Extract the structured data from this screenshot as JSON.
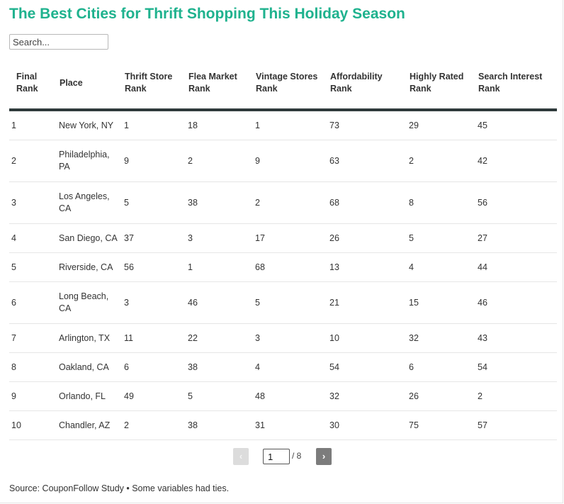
{
  "title": "The Best Cities for Thrift Shopping This Holiday Season",
  "search": {
    "placeholder": "Search..."
  },
  "table": {
    "headers": [
      "Final Rank",
      "Place",
      "Thrift Store Rank",
      "Flea Market Rank",
      "Vintage Stores Rank",
      "Affordability Rank",
      "Highly Rated Rank",
      "Search Interest Rank"
    ],
    "rows": [
      [
        "1",
        "New York, NY",
        "1",
        "18",
        "1",
        "73",
        "29",
        "45"
      ],
      [
        "2",
        "Philadelphia, PA",
        "9",
        "2",
        "9",
        "63",
        "2",
        "42"
      ],
      [
        "3",
        "Los Angeles, CA",
        "5",
        "38",
        "2",
        "68",
        "8",
        "56"
      ],
      [
        "4",
        "San Diego, CA",
        "37",
        "3",
        "17",
        "26",
        "5",
        "27"
      ],
      [
        "5",
        "Riverside, CA",
        "56",
        "1",
        "68",
        "13",
        "4",
        "44"
      ],
      [
        "6",
        "Long Beach, CA",
        "3",
        "46",
        "5",
        "21",
        "15",
        "46"
      ],
      [
        "7",
        "Arlington, TX",
        "11",
        "22",
        "3",
        "10",
        "32",
        "43"
      ],
      [
        "8",
        "Oakland, CA",
        "6",
        "38",
        "4",
        "54",
        "6",
        "54"
      ],
      [
        "9",
        "Orlando, FL",
        "49",
        "5",
        "48",
        "32",
        "26",
        "2"
      ],
      [
        "10",
        "Chandler, AZ",
        "2",
        "38",
        "31",
        "30",
        "75",
        "57"
      ]
    ]
  },
  "pagination": {
    "prev_label": "‹",
    "next_label": "›",
    "current_page": "1",
    "total_label": "/ 8"
  },
  "footer": {
    "source": "Source: CouponFollow Study • Some variables had ties."
  },
  "colors": {
    "title": "#1fb28e",
    "header_rule": "#2f3a3b",
    "next_button": "#7c7c7c",
    "prev_button_disabled": "#dcdcdc"
  }
}
